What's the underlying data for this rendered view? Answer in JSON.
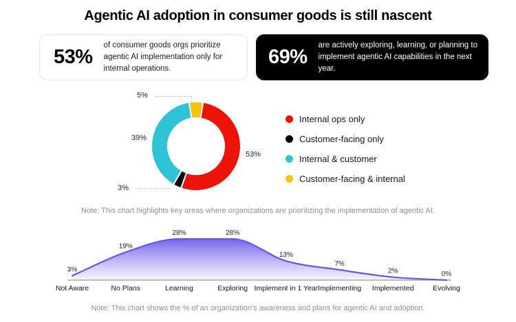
{
  "title": "Agentic AI adoption in consumer goods is still nascent",
  "stat_cards": [
    {
      "value": "53%",
      "text": "of consumer goods orgs prioritize agentic AI implementation only for internal operations.",
      "theme": "light"
    },
    {
      "value": "69%",
      "text": "are actively exploring, learning, or planning to implement agentic AI capabilities in the next year.",
      "theme": "dark"
    }
  ],
  "chart_data": [
    {
      "type": "pie",
      "variant": "donut",
      "start_angle_deg": 9,
      "segments": [
        {
          "label": "Internal ops only",
          "value": 53,
          "color": "#EC1408"
        },
        {
          "label": "Customer-facing only",
          "value": 3,
          "color": "#000000"
        },
        {
          "label": "Internal & customer",
          "value": 39,
          "color": "#2FC3D5"
        },
        {
          "label": "Customer-facing & internal",
          "value": 5,
          "color": "#F2C40E"
        }
      ],
      "legend_position": "right",
      "note": "Note: This chart highlights key areas where organizations are prioritizing the implementation of agentic AI."
    },
    {
      "type": "area",
      "categories": [
        "Not Aware",
        "No Plans",
        "Learning",
        "Exploring",
        "Implement in 1 Year",
        "Implementing",
        "Implemented",
        "Evolving"
      ],
      "values": [
        3,
        19,
        28,
        28,
        13,
        7,
        2,
        0
      ],
      "unit": "%",
      "ylim": [
        0,
        28
      ],
      "grid": false,
      "line_color": "#6852F2",
      "fill_top_color": "#6F60E9",
      "fill_bottom_color": "#F7F5FE",
      "baseline_color": "#A9A9A9",
      "note": "Note: This chart shows the % of an organization's awareness and plans for agentic AI and adoption."
    }
  ]
}
